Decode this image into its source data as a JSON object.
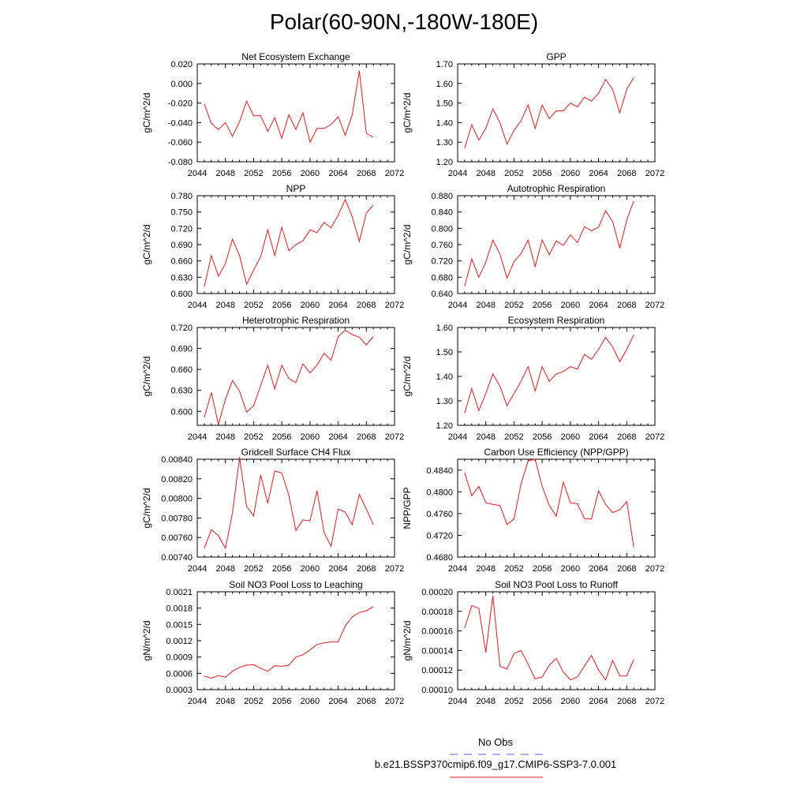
{
  "page_title": "Polar(60-90N,-180W-180E)",
  "legend": {
    "obs_label": "No Obs",
    "obs_color": "#5b5bd6",
    "model_label": "b.e21.BSSP370cmip6.f09_g17.CMIP6-SSP3-7.0.001",
    "model_color": "#e41a1c"
  },
  "chart_data": [
    {
      "type": "line",
      "title": "Net Ecosystem Exchange",
      "ylabel": "gC/m^2/d",
      "xlim": [
        2044,
        2072
      ],
      "xticks": [
        "2044",
        "2048",
        "2052",
        "2056",
        "2060",
        "2064",
        "2068",
        "2072"
      ],
      "ylim": [
        -0.08,
        0.02
      ],
      "yticks": [
        "-0.080",
        "-0.060",
        "-0.040",
        "-0.020",
        "0.000",
        "0.020"
      ],
      "series": [
        {
          "color": "#e41a1c",
          "x": [
            2045,
            2046,
            2047,
            2048,
            2049,
            2050,
            2051,
            2052,
            2053,
            2054,
            2055,
            2056,
            2057,
            2058,
            2059,
            2060,
            2061,
            2062,
            2063,
            2064,
            2065,
            2066,
            2067,
            2068,
            2069
          ],
          "y": [
            -0.021,
            -0.041,
            -0.047,
            -0.04,
            -0.054,
            -0.039,
            -0.018,
            -0.033,
            -0.033,
            -0.049,
            -0.035,
            -0.056,
            -0.032,
            -0.047,
            -0.03,
            -0.06,
            -0.046,
            -0.046,
            -0.042,
            -0.034,
            -0.053,
            -0.032,
            0.013,
            -0.051,
            -0.055
          ]
        }
      ]
    },
    {
      "type": "line",
      "title": "GPP",
      "ylabel": "gC/m^2/d",
      "xlim": [
        2044,
        2072
      ],
      "xticks": [
        "2044",
        "2048",
        "2052",
        "2056",
        "2060",
        "2064",
        "2068",
        "2072"
      ],
      "ylim": [
        1.2,
        1.7
      ],
      "yticks": [
        "1.20",
        "1.30",
        "1.40",
        "1.50",
        "1.60",
        "1.70"
      ],
      "series": [
        {
          "color": "#e41a1c",
          "x": [
            2045,
            2046,
            2047,
            2048,
            2049,
            2050,
            2051,
            2052,
            2053,
            2054,
            2055,
            2056,
            2057,
            2058,
            2059,
            2060,
            2061,
            2062,
            2063,
            2064,
            2065,
            2066,
            2067,
            2068,
            2069
          ],
          "y": [
            1.27,
            1.39,
            1.31,
            1.37,
            1.47,
            1.4,
            1.29,
            1.36,
            1.41,
            1.49,
            1.37,
            1.49,
            1.42,
            1.46,
            1.46,
            1.5,
            1.48,
            1.53,
            1.51,
            1.55,
            1.62,
            1.57,
            1.45,
            1.57,
            1.63
          ]
        }
      ]
    },
    {
      "type": "line",
      "title": "NPP",
      "ylabel": "gC/m^2/d",
      "xlim": [
        2044,
        2072
      ],
      "xticks": [
        "2044",
        "2048",
        "2052",
        "2056",
        "2060",
        "2064",
        "2068",
        "2072"
      ],
      "ylim": [
        0.6,
        0.78
      ],
      "yticks": [
        "0.600",
        "0.630",
        "0.660",
        "0.690",
        "0.720",
        "0.750",
        "0.780"
      ],
      "series": [
        {
          "color": "#e41a1c",
          "x": [
            2045,
            2046,
            2047,
            2048,
            2049,
            2050,
            2051,
            2052,
            2053,
            2054,
            2055,
            2056,
            2057,
            2058,
            2059,
            2060,
            2061,
            2062,
            2063,
            2064,
            2065,
            2066,
            2067,
            2068,
            2069
          ],
          "y": [
            0.612,
            0.67,
            0.632,
            0.655,
            0.7,
            0.67,
            0.617,
            0.643,
            0.668,
            0.717,
            0.67,
            0.722,
            0.679,
            0.69,
            0.697,
            0.717,
            0.712,
            0.731,
            0.721,
            0.744,
            0.773,
            0.741,
            0.696,
            0.748,
            0.763
          ]
        }
      ]
    },
    {
      "type": "line",
      "title": "Autotrophic Respiration",
      "ylabel": "gC/m^2/d",
      "xlim": [
        2044,
        2072
      ],
      "xticks": [
        "2044",
        "2048",
        "2052",
        "2056",
        "2060",
        "2064",
        "2068",
        "2072"
      ],
      "ylim": [
        0.64,
        0.88
      ],
      "yticks": [
        "0.640",
        "0.680",
        "0.720",
        "0.760",
        "0.800",
        "0.840",
        "0.880"
      ],
      "series": [
        {
          "color": "#e41a1c",
          "x": [
            2045,
            2046,
            2047,
            2048,
            2049,
            2050,
            2051,
            2052,
            2053,
            2054,
            2055,
            2056,
            2057,
            2058,
            2059,
            2060,
            2061,
            2062,
            2063,
            2064,
            2065,
            2066,
            2067,
            2068,
            2069
          ],
          "y": [
            0.658,
            0.725,
            0.68,
            0.717,
            0.771,
            0.737,
            0.678,
            0.718,
            0.738,
            0.771,
            0.706,
            0.772,
            0.735,
            0.769,
            0.758,
            0.784,
            0.765,
            0.804,
            0.794,
            0.803,
            0.843,
            0.817,
            0.751,
            0.82,
            0.867
          ]
        }
      ]
    },
    {
      "type": "line",
      "title": "Heterotrophic Respiration",
      "ylabel": "gC/m^2/d",
      "xlim": [
        2044,
        2072
      ],
      "xticks": [
        "2044",
        "2048",
        "2052",
        "2056",
        "2060",
        "2064",
        "2068",
        "2072"
      ],
      "ylim": [
        0.58,
        0.72
      ],
      "yticks": [
        "0.600",
        "0.630",
        "0.660",
        "0.690",
        "0.720"
      ],
      "series": [
        {
          "color": "#e41a1c",
          "x": [
            2045,
            2046,
            2047,
            2048,
            2049,
            2050,
            2051,
            2052,
            2053,
            2054,
            2055,
            2056,
            2057,
            2058,
            2059,
            2060,
            2061,
            2062,
            2063,
            2064,
            2065,
            2066,
            2067,
            2068,
            2069
          ],
          "y": [
            0.591,
            0.627,
            0.581,
            0.617,
            0.644,
            0.629,
            0.599,
            0.608,
            0.637,
            0.666,
            0.632,
            0.666,
            0.647,
            0.641,
            0.668,
            0.655,
            0.666,
            0.683,
            0.673,
            0.707,
            0.716,
            0.71,
            0.706,
            0.695,
            0.707
          ]
        }
      ]
    },
    {
      "type": "line",
      "title": "Ecosystem Respiration",
      "ylabel": "gC/m^2/d",
      "xlim": [
        2044,
        2072
      ],
      "xticks": [
        "2044",
        "2048",
        "2052",
        "2056",
        "2060",
        "2064",
        "2068",
        "2072"
      ],
      "ylim": [
        1.2,
        1.6
      ],
      "yticks": [
        "1.20",
        "1.30",
        "1.40",
        "1.50",
        "1.60"
      ],
      "series": [
        {
          "color": "#e41a1c",
          "x": [
            2045,
            2046,
            2047,
            2048,
            2049,
            2050,
            2051,
            2052,
            2053,
            2054,
            2055,
            2056,
            2057,
            2058,
            2059,
            2060,
            2061,
            2062,
            2063,
            2064,
            2065,
            2066,
            2067,
            2068,
            2069
          ],
          "y": [
            1.25,
            1.35,
            1.26,
            1.33,
            1.41,
            1.36,
            1.28,
            1.33,
            1.38,
            1.44,
            1.34,
            1.44,
            1.38,
            1.41,
            1.42,
            1.44,
            1.43,
            1.49,
            1.47,
            1.51,
            1.56,
            1.52,
            1.46,
            1.51,
            1.57
          ]
        }
      ]
    },
    {
      "type": "line",
      "title": "Gridcell Surface CH4 Flux",
      "ylabel": "gC/m^2/d",
      "xlim": [
        2044,
        2072
      ],
      "xticks": [
        "2044",
        "2048",
        "2052",
        "2056",
        "2060",
        "2064",
        "2068",
        "2072"
      ],
      "ylim": [
        0.0074,
        0.0084
      ],
      "yticks": [
        "0.00740",
        "0.00760",
        "0.00780",
        "0.00800",
        "0.00820",
        "0.00840"
      ],
      "series": [
        {
          "color": "#e41a1c",
          "x": [
            2045,
            2046,
            2047,
            2048,
            2049,
            2050,
            2051,
            2052,
            2053,
            2054,
            2055,
            2056,
            2057,
            2058,
            2059,
            2060,
            2061,
            2062,
            2063,
            2064,
            2065,
            2066,
            2067,
            2068,
            2069
          ],
          "y": [
            0.00749,
            0.00768,
            0.00762,
            0.00749,
            0.00785,
            0.00842,
            0.00792,
            0.00782,
            0.00824,
            0.00795,
            0.00828,
            0.00826,
            0.00803,
            0.00767,
            0.00778,
            0.00777,
            0.00808,
            0.00765,
            0.00751,
            0.00789,
            0.00786,
            0.00773,
            0.00804,
            0.00789,
            0.00773
          ]
        }
      ]
    },
    {
      "type": "line",
      "title": "Carbon Use Efficiency (NPP/GPP)",
      "ylabel": "NPP/GPP",
      "xlim": [
        2044,
        2072
      ],
      "xticks": [
        "2044",
        "2048",
        "2052",
        "2056",
        "2060",
        "2064",
        "2068",
        "2072"
      ],
      "ylim": [
        0.468,
        0.486
      ],
      "yticks": [
        "0.4680",
        "0.4720",
        "0.4760",
        "0.4800",
        "0.4840"
      ],
      "series": [
        {
          "color": "#e41a1c",
          "x": [
            2045,
            2046,
            2047,
            2048,
            2049,
            2050,
            2051,
            2052,
            2053,
            2054,
            2055,
            2056,
            2057,
            2058,
            2059,
            2060,
            2061,
            2062,
            2063,
            2064,
            2065,
            2066,
            2067,
            2068,
            2069
          ],
          "y": [
            0.4835,
            0.4793,
            0.481,
            0.478,
            0.4777,
            0.4775,
            0.474,
            0.475,
            0.4815,
            0.4857,
            0.486,
            0.481,
            0.4775,
            0.4755,
            0.4818,
            0.478,
            0.4778,
            0.4751,
            0.475,
            0.4802,
            0.4777,
            0.4762,
            0.4767,
            0.4782,
            0.4698
          ]
        }
      ]
    },
    {
      "type": "line",
      "title": "Soil NO3 Pool Loss to Leaching",
      "ylabel": "gN/m^2/d",
      "xlim": [
        2044,
        2072
      ],
      "xticks": [
        "2044",
        "2048",
        "2052",
        "2056",
        "2060",
        "2064",
        "2068",
        "2072"
      ],
      "ylim": [
        0.0003,
        0.0021
      ],
      "yticks": [
        "0.0003",
        "0.0006",
        "0.0009",
        "0.0012",
        "0.0015",
        "0.0018",
        "0.0021"
      ],
      "series": [
        {
          "color": "#e41a1c",
          "x": [
            2045,
            2046,
            2047,
            2048,
            2049,
            2050,
            2051,
            2052,
            2053,
            2054,
            2055,
            2056,
            2057,
            2058,
            2059,
            2060,
            2061,
            2062,
            2063,
            2064,
            2065,
            2066,
            2067,
            2068,
            2069
          ],
          "y": [
            0.00055,
            0.00051,
            0.00056,
            0.00053,
            0.00064,
            0.00071,
            0.00075,
            0.00076,
            0.00069,
            0.00064,
            0.00074,
            0.00073,
            0.00075,
            0.0009,
            0.00094,
            0.00103,
            0.00113,
            0.00116,
            0.00118,
            0.00118,
            0.00147,
            0.00164,
            0.00172,
            0.00175,
            0.00183
          ]
        }
      ]
    },
    {
      "type": "line",
      "title": "Soil NO3 Pool Loss to Runoff",
      "ylabel": "gN/m^2/d",
      "xlim": [
        2044,
        2072
      ],
      "xticks": [
        "2044",
        "2048",
        "2052",
        "2056",
        "2060",
        "2064",
        "2068",
        "2072"
      ],
      "ylim": [
        0.0001,
        0.0002
      ],
      "yticks": [
        "0.00010",
        "0.00012",
        "0.00014",
        "0.00016",
        "0.00018",
        "0.00020"
      ],
      "series": [
        {
          "color": "#e41a1c",
          "x": [
            2045,
            2046,
            2047,
            2048,
            2049,
            2050,
            2051,
            2052,
            2053,
            2054,
            2055,
            2056,
            2057,
            2058,
            2059,
            2060,
            2061,
            2062,
            2063,
            2064,
            2065,
            2066,
            2067,
            2068,
            2069
          ],
          "y": [
            0.000163,
            0.000186,
            0.000183,
            0.000138,
            0.000196,
            0.000124,
            0.000121,
            0.000137,
            0.00014,
            0.000126,
            0.000111,
            0.000113,
            0.000125,
            0.000132,
            0.000118,
            0.00011,
            0.000113,
            0.000124,
            0.000135,
            0.00012,
            0.00011,
            0.00013,
            0.000114,
            0.000114,
            0.000131
          ]
        }
      ]
    }
  ]
}
